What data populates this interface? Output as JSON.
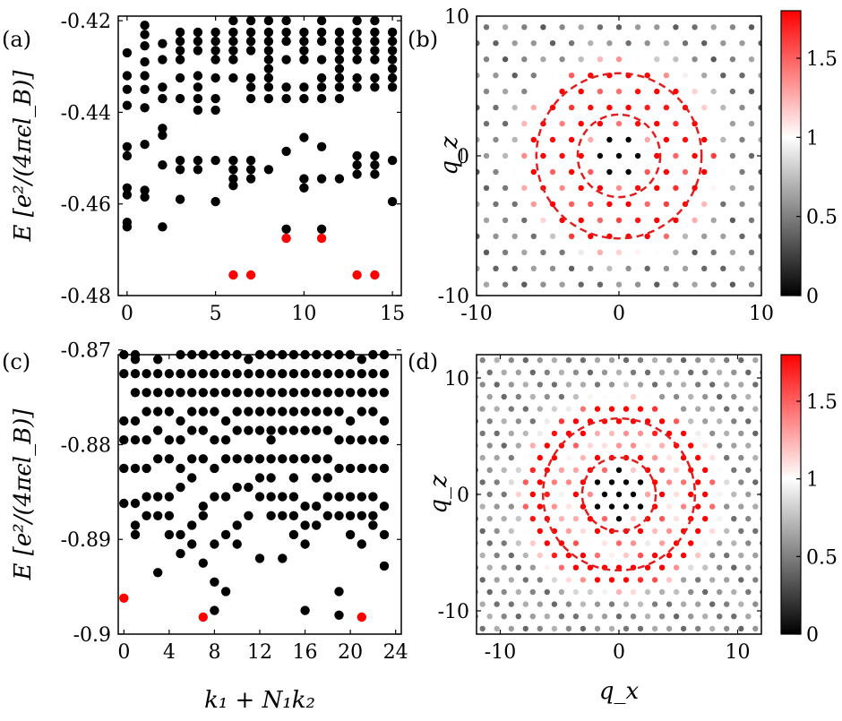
{
  "figure": {
    "colors": {
      "point": "#000000",
      "highlight": "#ff0000",
      "ring": "#e02020"
    }
  },
  "panels": {
    "a": {
      "label": "(a)",
      "ylabel": "E [e²/(4πϵl_B)]"
    },
    "b": {
      "label": "(b)",
      "ylabel": "q_z"
    },
    "c": {
      "label": "(c)",
      "ylabel": "E [e²/(4πϵl_B)]",
      "xlabel": "k₁ + N₁k₂"
    },
    "d": {
      "label": "(d)",
      "ylabel": "q_z",
      "xlabel": "q_x"
    }
  },
  "chart_data": [
    {
      "id": "a",
      "type": "scatter",
      "title": "(a)",
      "xlabel": "",
      "ylabel": "E [e²/(4πϵl_B)]",
      "xlim": [
        -0.5,
        15.5
      ],
      "ylim": [
        -0.48,
        -0.419
      ],
      "xticks": [
        0,
        5,
        10,
        15
      ],
      "xtick_labels": [
        "0",
        "5",
        "10",
        "15"
      ],
      "yticks": [
        -0.42,
        -0.44,
        -0.46,
        -0.48
      ],
      "ytick_labels": [
        "-0.42",
        "-0.44",
        "-0.46",
        "-0.48"
      ],
      "series": [
        {
          "name": "spectrum",
          "color": "#000000",
          "x": [
            0,
            0,
            0,
            0,
            0,
            0,
            0,
            0,
            0,
            0,
            1,
            1,
            1,
            1,
            1,
            1,
            1,
            1,
            1,
            1,
            2,
            2,
            2,
            2,
            2,
            2,
            2,
            2,
            3,
            3,
            3,
            3,
            3,
            3,
            3,
            3,
            3,
            4,
            4,
            4,
            4,
            4,
            4,
            4,
            4,
            4,
            5,
            5,
            5,
            5,
            5,
            5,
            5,
            5,
            5,
            6,
            6,
            6,
            6,
            6,
            6,
            6,
            6,
            6,
            6,
            7,
            7,
            7,
            7,
            7,
            7,
            7,
            7,
            7,
            7,
            8,
            8,
            8,
            8,
            8,
            8,
            8,
            8,
            8,
            8,
            9,
            9,
            9,
            9,
            9,
            9,
            9,
            9,
            10,
            10,
            10,
            10,
            10,
            10,
            10,
            10,
            10,
            11,
            11,
            11,
            11,
            11,
            11,
            11,
            11,
            11,
            11,
            12,
            12,
            12,
            12,
            12,
            12,
            12,
            12,
            12,
            13,
            13,
            13,
            13,
            13,
            13,
            13,
            13,
            13,
            13,
            14,
            14,
            14,
            14,
            14,
            14,
            14,
            14,
            14,
            14,
            15,
            15,
            15,
            15,
            15,
            15,
            15,
            15,
            15
          ],
          "y": [
            -0.427,
            -0.432,
            -0.435,
            -0.4385,
            -0.4475,
            -0.4495,
            -0.4565,
            -0.458,
            -0.464,
            -0.465,
            -0.421,
            -0.423,
            -0.4255,
            -0.429,
            -0.432,
            -0.435,
            -0.439,
            -0.447,
            -0.457,
            -0.4585,
            -0.425,
            -0.4285,
            -0.4345,
            -0.437,
            -0.4435,
            -0.445,
            -0.4515,
            -0.465,
            -0.4225,
            -0.4245,
            -0.4265,
            -0.4285,
            -0.4325,
            -0.437,
            -0.4505,
            -0.4525,
            -0.459,
            -0.4225,
            -0.4245,
            -0.4265,
            -0.432,
            -0.4345,
            -0.437,
            -0.4395,
            -0.4505,
            -0.4525,
            -0.4225,
            -0.4245,
            -0.4265,
            -0.4285,
            -0.4325,
            -0.437,
            -0.4395,
            -0.4505,
            -0.4595,
            -0.42,
            -0.4225,
            -0.4245,
            -0.4265,
            -0.4285,
            -0.4325,
            -0.4505,
            -0.4525,
            -0.4545,
            -0.456,
            -0.42,
            -0.4225,
            -0.4245,
            -0.4265,
            -0.4325,
            -0.4345,
            -0.437,
            -0.4505,
            -0.4525,
            -0.4545,
            -0.42,
            -0.4225,
            -0.4245,
            -0.4265,
            -0.4285,
            -0.4305,
            -0.4325,
            -0.4345,
            -0.437,
            -0.4525,
            -0.42,
            -0.4225,
            -0.4245,
            -0.4285,
            -0.4345,
            -0.437,
            -0.4485,
            -0.4655,
            -0.4225,
            -0.4245,
            -0.4265,
            -0.4285,
            -0.4345,
            -0.437,
            -0.4455,
            -0.4545,
            -0.4565,
            -0.42,
            -0.4225,
            -0.4245,
            -0.4285,
            -0.4325,
            -0.4345,
            -0.437,
            -0.4475,
            -0.4545,
            -0.4655,
            -0.4225,
            -0.4245,
            -0.4265,
            -0.4285,
            -0.4305,
            -0.4325,
            -0.4345,
            -0.437,
            -0.4545,
            -0.42,
            -0.4225,
            -0.4245,
            -0.4265,
            -0.4285,
            -0.4325,
            -0.4345,
            -0.4495,
            -0.4515,
            -0.4535,
            -0.42,
            -0.4225,
            -0.4245,
            -0.4265,
            -0.4285,
            -0.4325,
            -0.4345,
            -0.4495,
            -0.4515,
            -0.4535,
            -0.4225,
            -0.4245,
            -0.4265,
            -0.4285,
            -0.4305,
            -0.4325,
            -0.4345,
            -0.4505,
            -0.4595
          ]
        },
        {
          "name": "ground-state manifold",
          "color": "#ff0000",
          "x": [
            6,
            7,
            9,
            11,
            13,
            14
          ],
          "y": [
            -0.4755,
            -0.4755,
            -0.4675,
            -0.4675,
            -0.4755,
            -0.4755
          ]
        }
      ]
    },
    {
      "id": "c",
      "type": "scatter",
      "title": "(c)",
      "xlabel": "k₁ + N₁k₂",
      "ylabel": "E [e²/(4πϵl_B)]",
      "xlim": [
        -0.5,
        24.5
      ],
      "ylim": [
        -0.9,
        -0.8705
      ],
      "xticks": [
        0,
        4,
        8,
        12,
        16,
        20,
        24
      ],
      "xtick_labels": [
        "0",
        "4",
        "8",
        "12",
        "16",
        "20",
        "24"
      ],
      "yticks": [
        -0.87,
        -0.88,
        -0.89,
        -0.9
      ],
      "ytick_labels": [
        "-0.87",
        "-0.88",
        "-0.89",
        "-0.9"
      ],
      "series": [
        {
          "name": "spectrum",
          "color": "#000000",
          "x": [
            0,
            0,
            0,
            0,
            0,
            0,
            1,
            1,
            1,
            1,
            1,
            1,
            1,
            1,
            1,
            1,
            2,
            2,
            2,
            2,
            2,
            2,
            2,
            3,
            3,
            3,
            3,
            3,
            3,
            3,
            3,
            3,
            4,
            4,
            4,
            4,
            4,
            4,
            4,
            4,
            5,
            5,
            5,
            5,
            5,
            5,
            5,
            5,
            5,
            6,
            6,
            6,
            6,
            6,
            6,
            6,
            6,
            6,
            7,
            7,
            7,
            7,
            7,
            7,
            7,
            7,
            7,
            8,
            8,
            8,
            8,
            8,
            8,
            8,
            8,
            8,
            8,
            9,
            9,
            9,
            9,
            9,
            9,
            9,
            9,
            9,
            10,
            10,
            10,
            10,
            10,
            10,
            10,
            10,
            10,
            11,
            11,
            11,
            11,
            11,
            11,
            11,
            11,
            12,
            12,
            12,
            12,
            12,
            12,
            12,
            12,
            12,
            13,
            13,
            13,
            13,
            13,
            13,
            13,
            13,
            13,
            13,
            14,
            14,
            14,
            14,
            14,
            14,
            14,
            14,
            14,
            15,
            15,
            15,
            15,
            15,
            15,
            15,
            15,
            15,
            15,
            16,
            16,
            16,
            16,
            16,
            16,
            16,
            16,
            16,
            16,
            17,
            17,
            17,
            17,
            17,
            17,
            17,
            17,
            17,
            18,
            18,
            18,
            18,
            18,
            18,
            18,
            18,
            18,
            19,
            19,
            19,
            19,
            19,
            19,
            19,
            19,
            19,
            19,
            20,
            20,
            20,
            20,
            20,
            20,
            20,
            20,
            20,
            21,
            21,
            21,
            21,
            21,
            21,
            21,
            21,
            21,
            22,
            22,
            22,
            22,
            22,
            22,
            22,
            22,
            22,
            23,
            23,
            23,
            23,
            23,
            23,
            23,
            23,
            23
          ],
          "y": [
            -0.8705,
            -0.8725,
            -0.8775,
            -0.8795,
            -0.8825,
            -0.8862,
            -0.8705,
            -0.871,
            -0.8725,
            -0.8745,
            -0.8775,
            -0.8795,
            -0.8825,
            -0.8862,
            -0.8885,
            -0.8895,
            -0.8725,
            -0.8745,
            -0.8765,
            -0.8795,
            -0.8825,
            -0.8855,
            -0.8875,
            -0.871,
            -0.8725,
            -0.8745,
            -0.8765,
            -0.8785,
            -0.8815,
            -0.8855,
            -0.8875,
            -0.8935,
            -0.8725,
            -0.8745,
            -0.8765,
            -0.8795,
            -0.8815,
            -0.8855,
            -0.8875,
            -0.8895,
            -0.8705,
            -0.8725,
            -0.8745,
            -0.8775,
            -0.8795,
            -0.8825,
            -0.8845,
            -0.8895,
            -0.8915,
            -0.8705,
            -0.8725,
            -0.8745,
            -0.8765,
            -0.8785,
            -0.8815,
            -0.8835,
            -0.8885,
            -0.8905,
            -0.8705,
            -0.8725,
            -0.8745,
            -0.8765,
            -0.8785,
            -0.8815,
            -0.8865,
            -0.8875,
            -0.8925,
            -0.8705,
            -0.8725,
            -0.8745,
            -0.8765,
            -0.8795,
            -0.8825,
            -0.8855,
            -0.8905,
            -0.8945,
            -0.8975,
            -0.8705,
            -0.8725,
            -0.8745,
            -0.8775,
            -0.8795,
            -0.8815,
            -0.8855,
            -0.8895,
            -0.8955,
            -0.8705,
            -0.8725,
            -0.8745,
            -0.8765,
            -0.8785,
            -0.8815,
            -0.8845,
            -0.8885,
            -0.8905,
            -0.871,
            -0.8725,
            -0.8745,
            -0.8765,
            -0.8785,
            -0.8815,
            -0.8845,
            -0.8875,
            -0.8705,
            -0.8725,
            -0.8745,
            -0.8765,
            -0.8785,
            -0.8815,
            -0.8835,
            -0.8855,
            -0.892,
            -0.8705,
            -0.8725,
            -0.8745,
            -0.8765,
            -0.8785,
            -0.8795,
            -0.8815,
            -0.8835,
            -0.8855,
            -0.8875,
            -0.8705,
            -0.8725,
            -0.8745,
            -0.8765,
            -0.8785,
            -0.8815,
            -0.8855,
            -0.8875,
            -0.892,
            -0.8705,
            -0.8725,
            -0.8745,
            -0.8765,
            -0.8785,
            -0.8815,
            -0.8835,
            -0.8855,
            -0.8875,
            -0.8895,
            -0.8705,
            -0.8725,
            -0.8745,
            -0.8765,
            -0.8785,
            -0.8815,
            -0.8865,
            -0.8885,
            -0.8905,
            -0.8975,
            -0.8705,
            -0.8725,
            -0.8745,
            -0.8765,
            -0.8785,
            -0.8815,
            -0.8835,
            -0.8865,
            -0.8885,
            -0.8705,
            -0.8725,
            -0.8745,
            -0.8765,
            -0.8785,
            -0.8815,
            -0.8835,
            -0.8855,
            -0.8875,
            -0.8705,
            -0.8725,
            -0.8745,
            -0.8765,
            -0.8795,
            -0.8825,
            -0.8855,
            -0.8875,
            -0.8955,
            -0.898,
            -0.8705,
            -0.8725,
            -0.8745,
            -0.8775,
            -0.8795,
            -0.8825,
            -0.8855,
            -0.8875,
            -0.8895,
            -0.871,
            -0.8725,
            -0.8745,
            -0.8765,
            -0.8795,
            -0.8825,
            -0.8855,
            -0.8875,
            -0.8905,
            -0.8705,
            -0.8725,
            -0.8745,
            -0.8765,
            -0.8795,
            -0.8825,
            -0.8855,
            -0.8875,
            -0.8885,
            -0.8705,
            -0.8725,
            -0.8745,
            -0.8775,
            -0.8795,
            -0.8825,
            -0.8865,
            -0.8895,
            -0.8928
          ]
        },
        {
          "name": "ground-state manifold",
          "color": "#ff0000",
          "x": [
            0,
            7,
            21
          ],
          "y": [
            -0.8962,
            -0.8982,
            -0.8982
          ]
        }
      ]
    },
    {
      "id": "b",
      "type": "heatmap",
      "title": "(b)",
      "xlabel": "",
      "ylabel": "q_z",
      "xlim": [
        -10,
        10
      ],
      "ylim": [
        -10,
        10
      ],
      "xticks": [
        -10,
        0,
        10
      ],
      "xtick_labels": [
        "-10",
        "0",
        "10"
      ],
      "yticks": [
        -10,
        0,
        10
      ],
      "ytick_labels": [
        "-10",
        "0",
        "10"
      ],
      "lattice": {
        "a1": [
          1.33,
          0
        ],
        "a2": [
          0.665,
          1.1518
        ]
      },
      "value_model": {
        "q0": 3.1,
        "sigma0": 0.7,
        "q1": 5.7,
        "sigma1": 1.0,
        "peak0": 1.7,
        "peak1": 1.55,
        "background": 0.5,
        "core_radius": 2.0,
        "core_value": 0.02
      },
      "rings": [
        {
          "radius": 5.8,
          "style": "dashed",
          "color": "#e02020"
        },
        {
          "radius": 2.9,
          "style": "dashed",
          "color": "#e02020"
        }
      ],
      "colorbar": {
        "range": [
          0,
          1.8
        ],
        "ticks": [
          0,
          0.5,
          1,
          1.5
        ],
        "tick_labels": [
          "0",
          "0.5",
          "1",
          "1.5"
        ]
      }
    },
    {
      "id": "d",
      "type": "heatmap",
      "title": "(d)",
      "xlabel": "q_x",
      "ylabel": "q_z",
      "xlim": [
        -12,
        12
      ],
      "ylim": [
        -12,
        12
      ],
      "xticks": [
        -10,
        0,
        10
      ],
      "xtick_labels": [
        "-10",
        "0",
        "10"
      ],
      "yticks": [
        -10,
        0,
        10
      ],
      "ytick_labels": [
        "-10",
        "0",
        "10"
      ],
      "lattice": {
        "a1": [
          1.21,
          0
        ],
        "a2": [
          0.605,
          1.048
        ]
      },
      "value_model": {
        "q0": 3.3,
        "sigma0": 0.7,
        "q1": 6.8,
        "sigma1": 1.1,
        "peak0": 1.7,
        "peak1": 1.6,
        "background": 0.55,
        "core_radius": 2.2,
        "core_value": 0.02
      },
      "rings": [
        {
          "radius": 6.4,
          "style": "dashed",
          "color": "#e02020"
        },
        {
          "radius": 3.1,
          "style": "dashed",
          "color": "#e02020"
        }
      ],
      "colorbar": {
        "range": [
          0,
          1.8
        ],
        "ticks": [
          0,
          0.5,
          1,
          1.5
        ],
        "tick_labels": [
          "0",
          "0.5",
          "1",
          "1.5"
        ]
      }
    }
  ]
}
